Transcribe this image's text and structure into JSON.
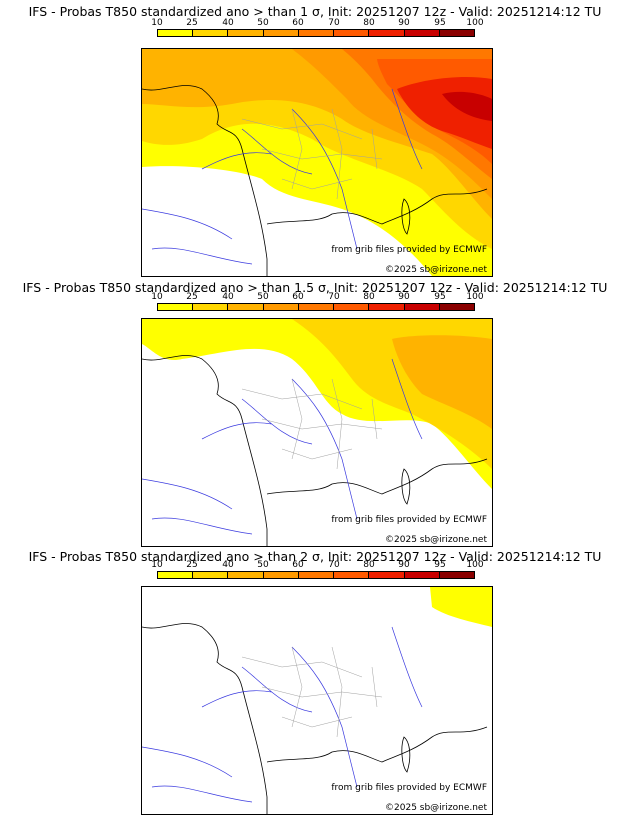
{
  "panels": [
    {
      "title": "IFS - Probas T850  standardized ano > than 1 σ, Init: 20251207 12z - Valid: 20251214:12 TU"
    },
    {
      "title": "IFS - Probas T850  standardized ano > than 1.5 σ, Init: 20251207 12z - Valid: 20251214:12 TU"
    },
    {
      "title": "IFS - Probas T850  standardized ano > than 2 σ, Init: 20251207 12z - Valid: 20251214:12 TU"
    }
  ],
  "legend": {
    "ticks": [
      "10",
      "25",
      "40",
      "50",
      "60",
      "70",
      "80",
      "90",
      "95",
      "100"
    ],
    "colors": [
      "#ffff00",
      "#ffd700",
      "#ffb300",
      "#ff9a00",
      "#ff7800",
      "#ff5a00",
      "#ef2000",
      "#c80000",
      "#8a0000"
    ]
  },
  "credits": {
    "source": "from grib files provided by ECMWF",
    "copyright": "©2025 sb@irizone.net"
  },
  "map_colors": {
    "coast": "#000000",
    "rivers": "#3a3adf",
    "regions": "#a0a0a0"
  }
}
